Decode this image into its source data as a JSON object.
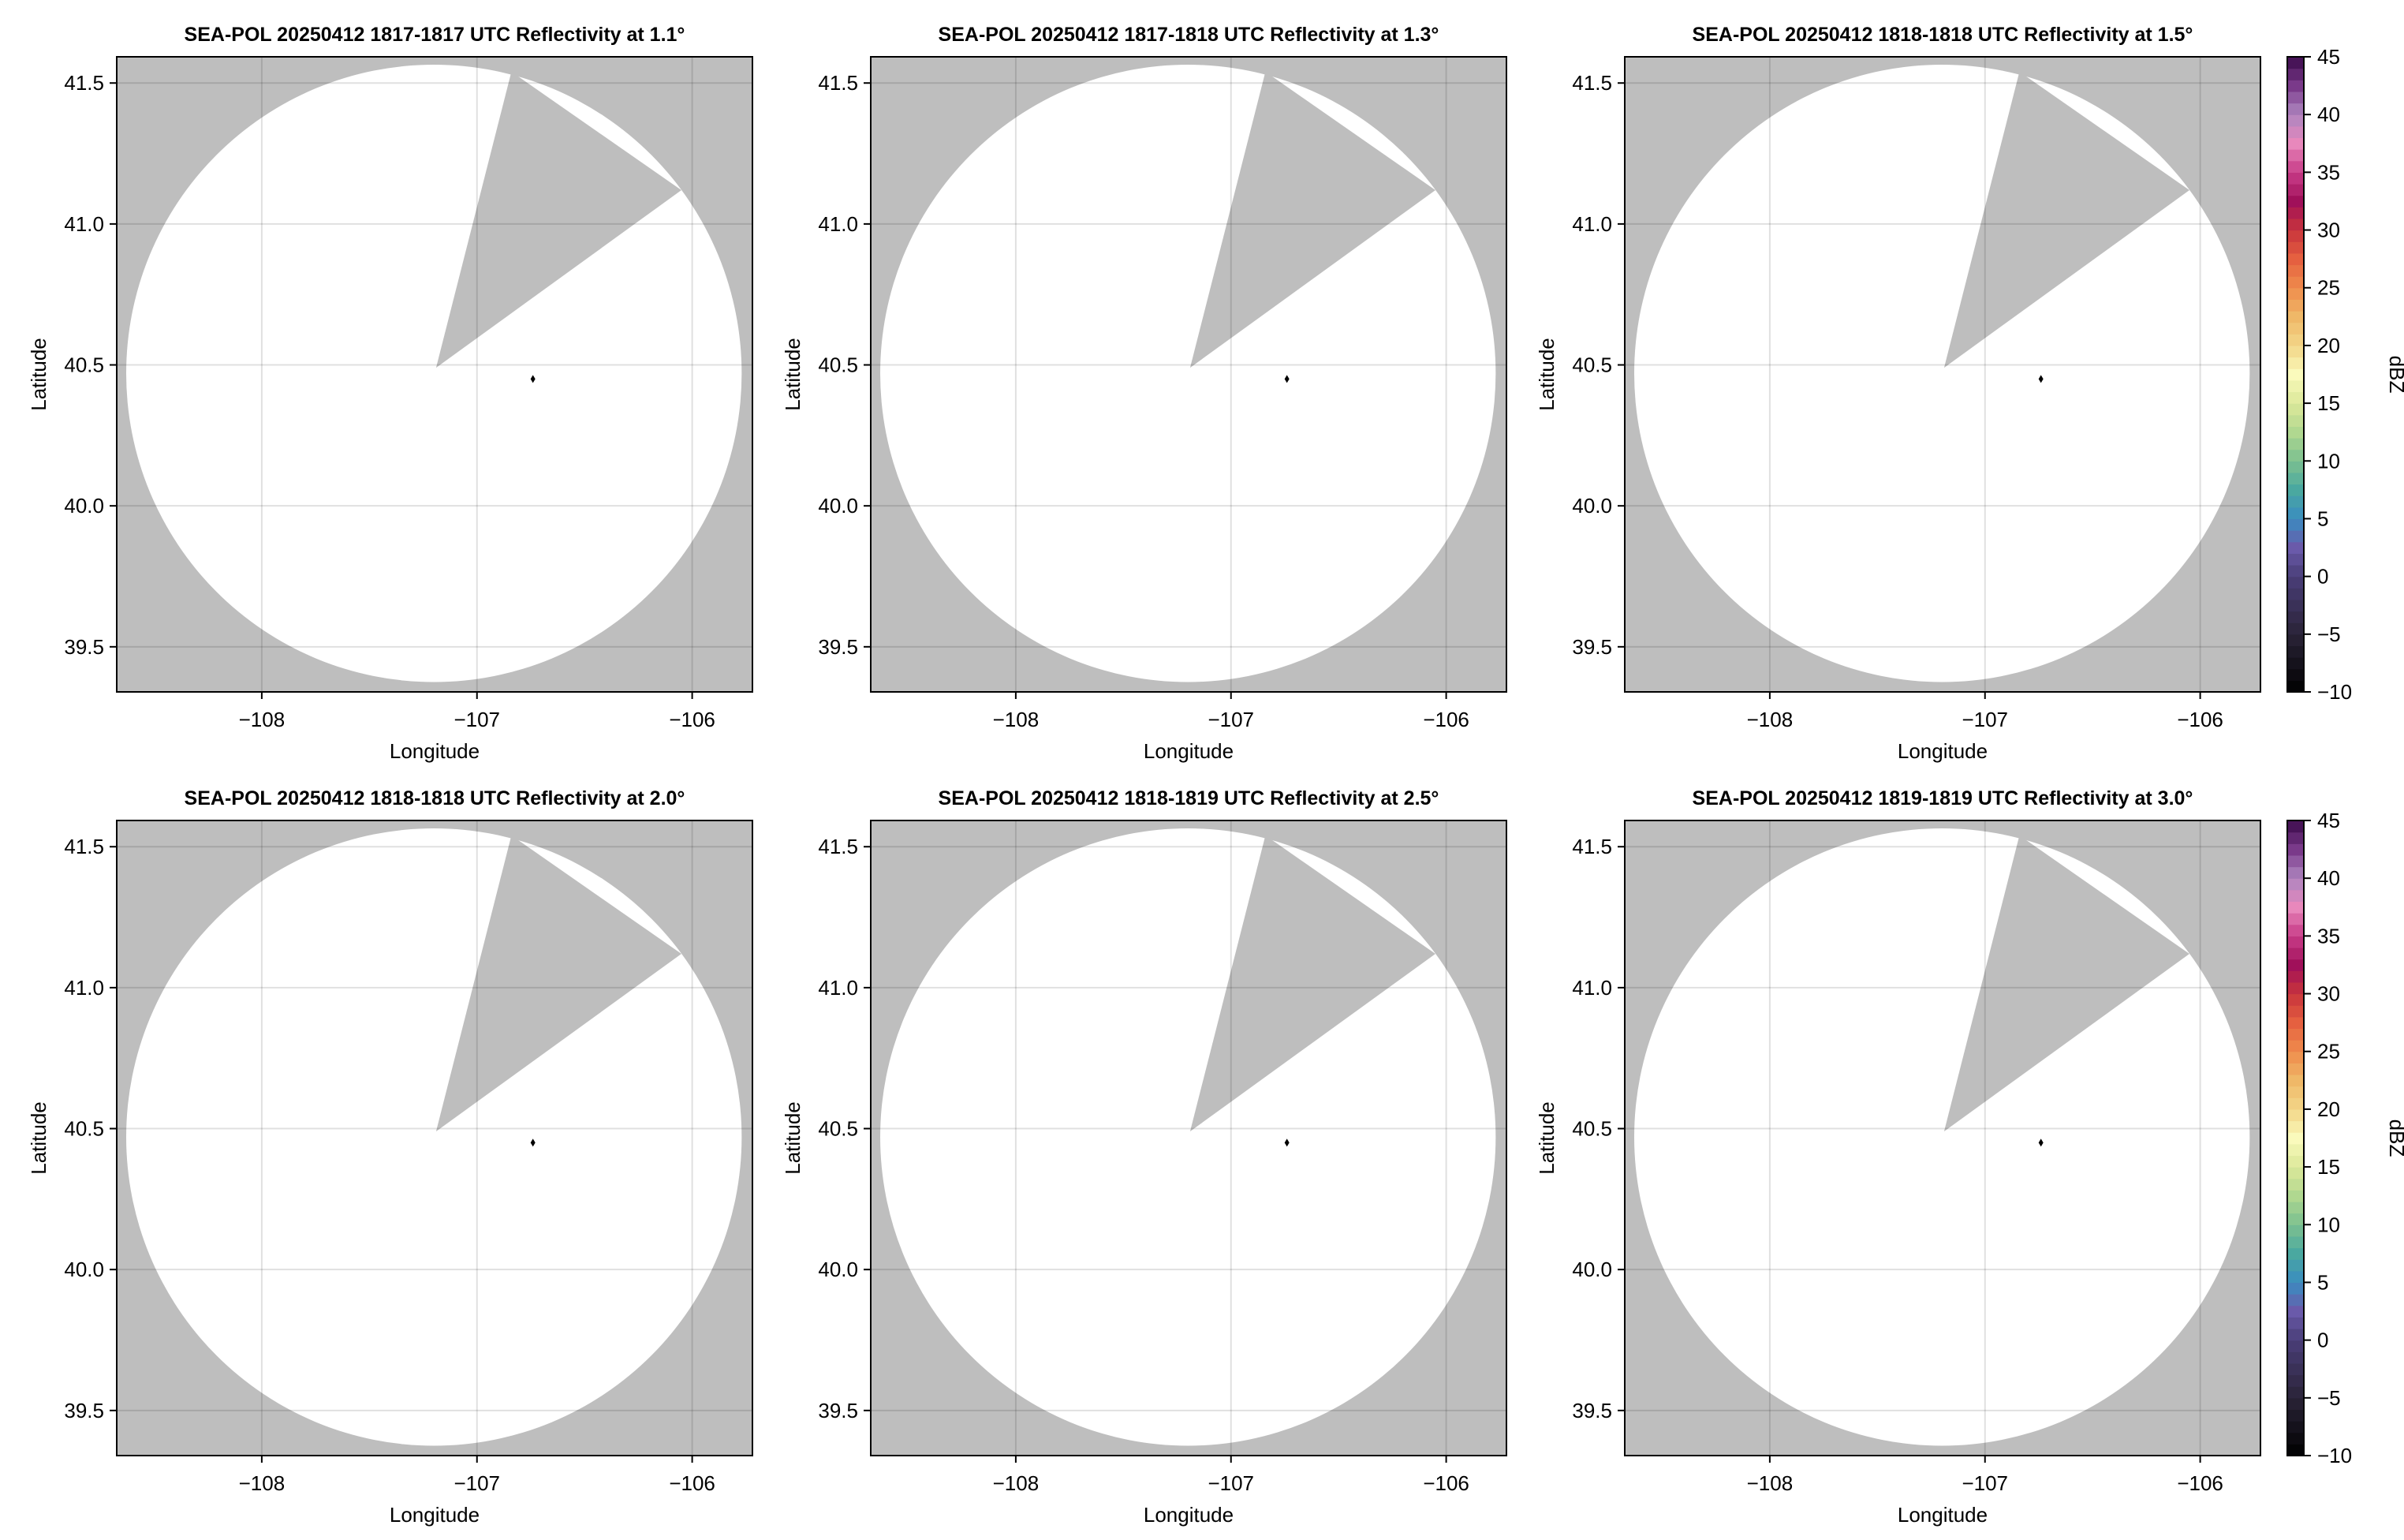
{
  "chart_data": [
    {
      "type": "heatmap",
      "title": "SEA-POL 20250412 1817-1817 UTC Reflectivity at 1.1°",
      "xlabel": "Longitude",
      "ylabel": "Latitude"
    },
    {
      "type": "heatmap",
      "title": "SEA-POL 20250412 1817-1818 UTC Reflectivity at 1.3°",
      "xlabel": "Longitude",
      "ylabel": "Latitude"
    },
    {
      "type": "heatmap",
      "title": "SEA-POL 20250412 1818-1818 UTC Reflectivity at 1.5°",
      "xlabel": "Longitude",
      "ylabel": "Latitude"
    },
    {
      "type": "heatmap",
      "title": "SEA-POL 20250412 1818-1818 UTC Reflectivity at 2.0°",
      "xlabel": "Longitude",
      "ylabel": "Latitude"
    },
    {
      "type": "heatmap",
      "title": "SEA-POL 20250412 1818-1819 UTC Reflectivity at 2.5°",
      "xlabel": "Longitude",
      "ylabel": "Latitude"
    },
    {
      "type": "heatmap",
      "title": "SEA-POL 20250412 1819-1819 UTC Reflectivity at 3.0°",
      "xlabel": "Longitude",
      "ylabel": "Latitude"
    }
  ],
  "axes": {
    "xlim": [
      -108.674,
      -105.72
    ],
    "ylim": [
      39.34,
      41.593
    ],
    "xticks": [
      -108,
      -107,
      -106
    ],
    "xtick_labels": [
      "−108",
      "−107",
      "−106"
    ],
    "yticks": [
      39.5,
      40.0,
      40.5,
      41.0,
      41.5
    ],
    "ytick_labels": [
      "39.5",
      "40.0",
      "40.5",
      "41.0",
      "41.5"
    ],
    "grid": true
  },
  "coverage": {
    "center": [
      -107.2,
      40.47
    ],
    "radius_lon": 1.43,
    "radius_lat": 1.095,
    "blocked_wedge": [
      [
        -107.19,
        40.49
      ],
      [
        -106.84,
        41.54
      ],
      [
        -106.05,
        41.12
      ]
    ],
    "marker": [
      -106.74,
      40.45
    ],
    "nodata_color": "#bebebe",
    "covered_color": "#ffffff"
  },
  "colorbar": {
    "label": "dBZ",
    "range": [
      -10,
      45
    ],
    "ticks": [
      -10,
      -5,
      0,
      5,
      10,
      15,
      20,
      25,
      30,
      35,
      40,
      45
    ],
    "tick_labels": [
      "−10",
      "−5",
      "0",
      "5",
      "10",
      "15",
      "20",
      "25",
      "30",
      "35",
      "40",
      "45"
    ],
    "stops": [
      [
        -10,
        "#000000"
      ],
      [
        -5,
        "#2a2338"
      ],
      [
        0,
        "#4a3e78"
      ],
      [
        2.5,
        "#6a5aaa"
      ],
      [
        5,
        "#3a8cc0"
      ],
      [
        7.5,
        "#4aa8a0"
      ],
      [
        10,
        "#7cc090"
      ],
      [
        12.5,
        "#b0d890"
      ],
      [
        15,
        "#dce89a"
      ],
      [
        17.5,
        "#fafabc"
      ],
      [
        20,
        "#f3d688"
      ],
      [
        22.5,
        "#efb868"
      ],
      [
        25,
        "#ef8c4c"
      ],
      [
        27.5,
        "#e56040"
      ],
      [
        30,
        "#c8343c"
      ],
      [
        32.5,
        "#a0105a"
      ],
      [
        35,
        "#c83c88"
      ],
      [
        37.5,
        "#e888bc"
      ],
      [
        40,
        "#ae86c0"
      ],
      [
        42.5,
        "#7a3a8a"
      ],
      [
        45,
        "#3c0a4c"
      ]
    ]
  }
}
